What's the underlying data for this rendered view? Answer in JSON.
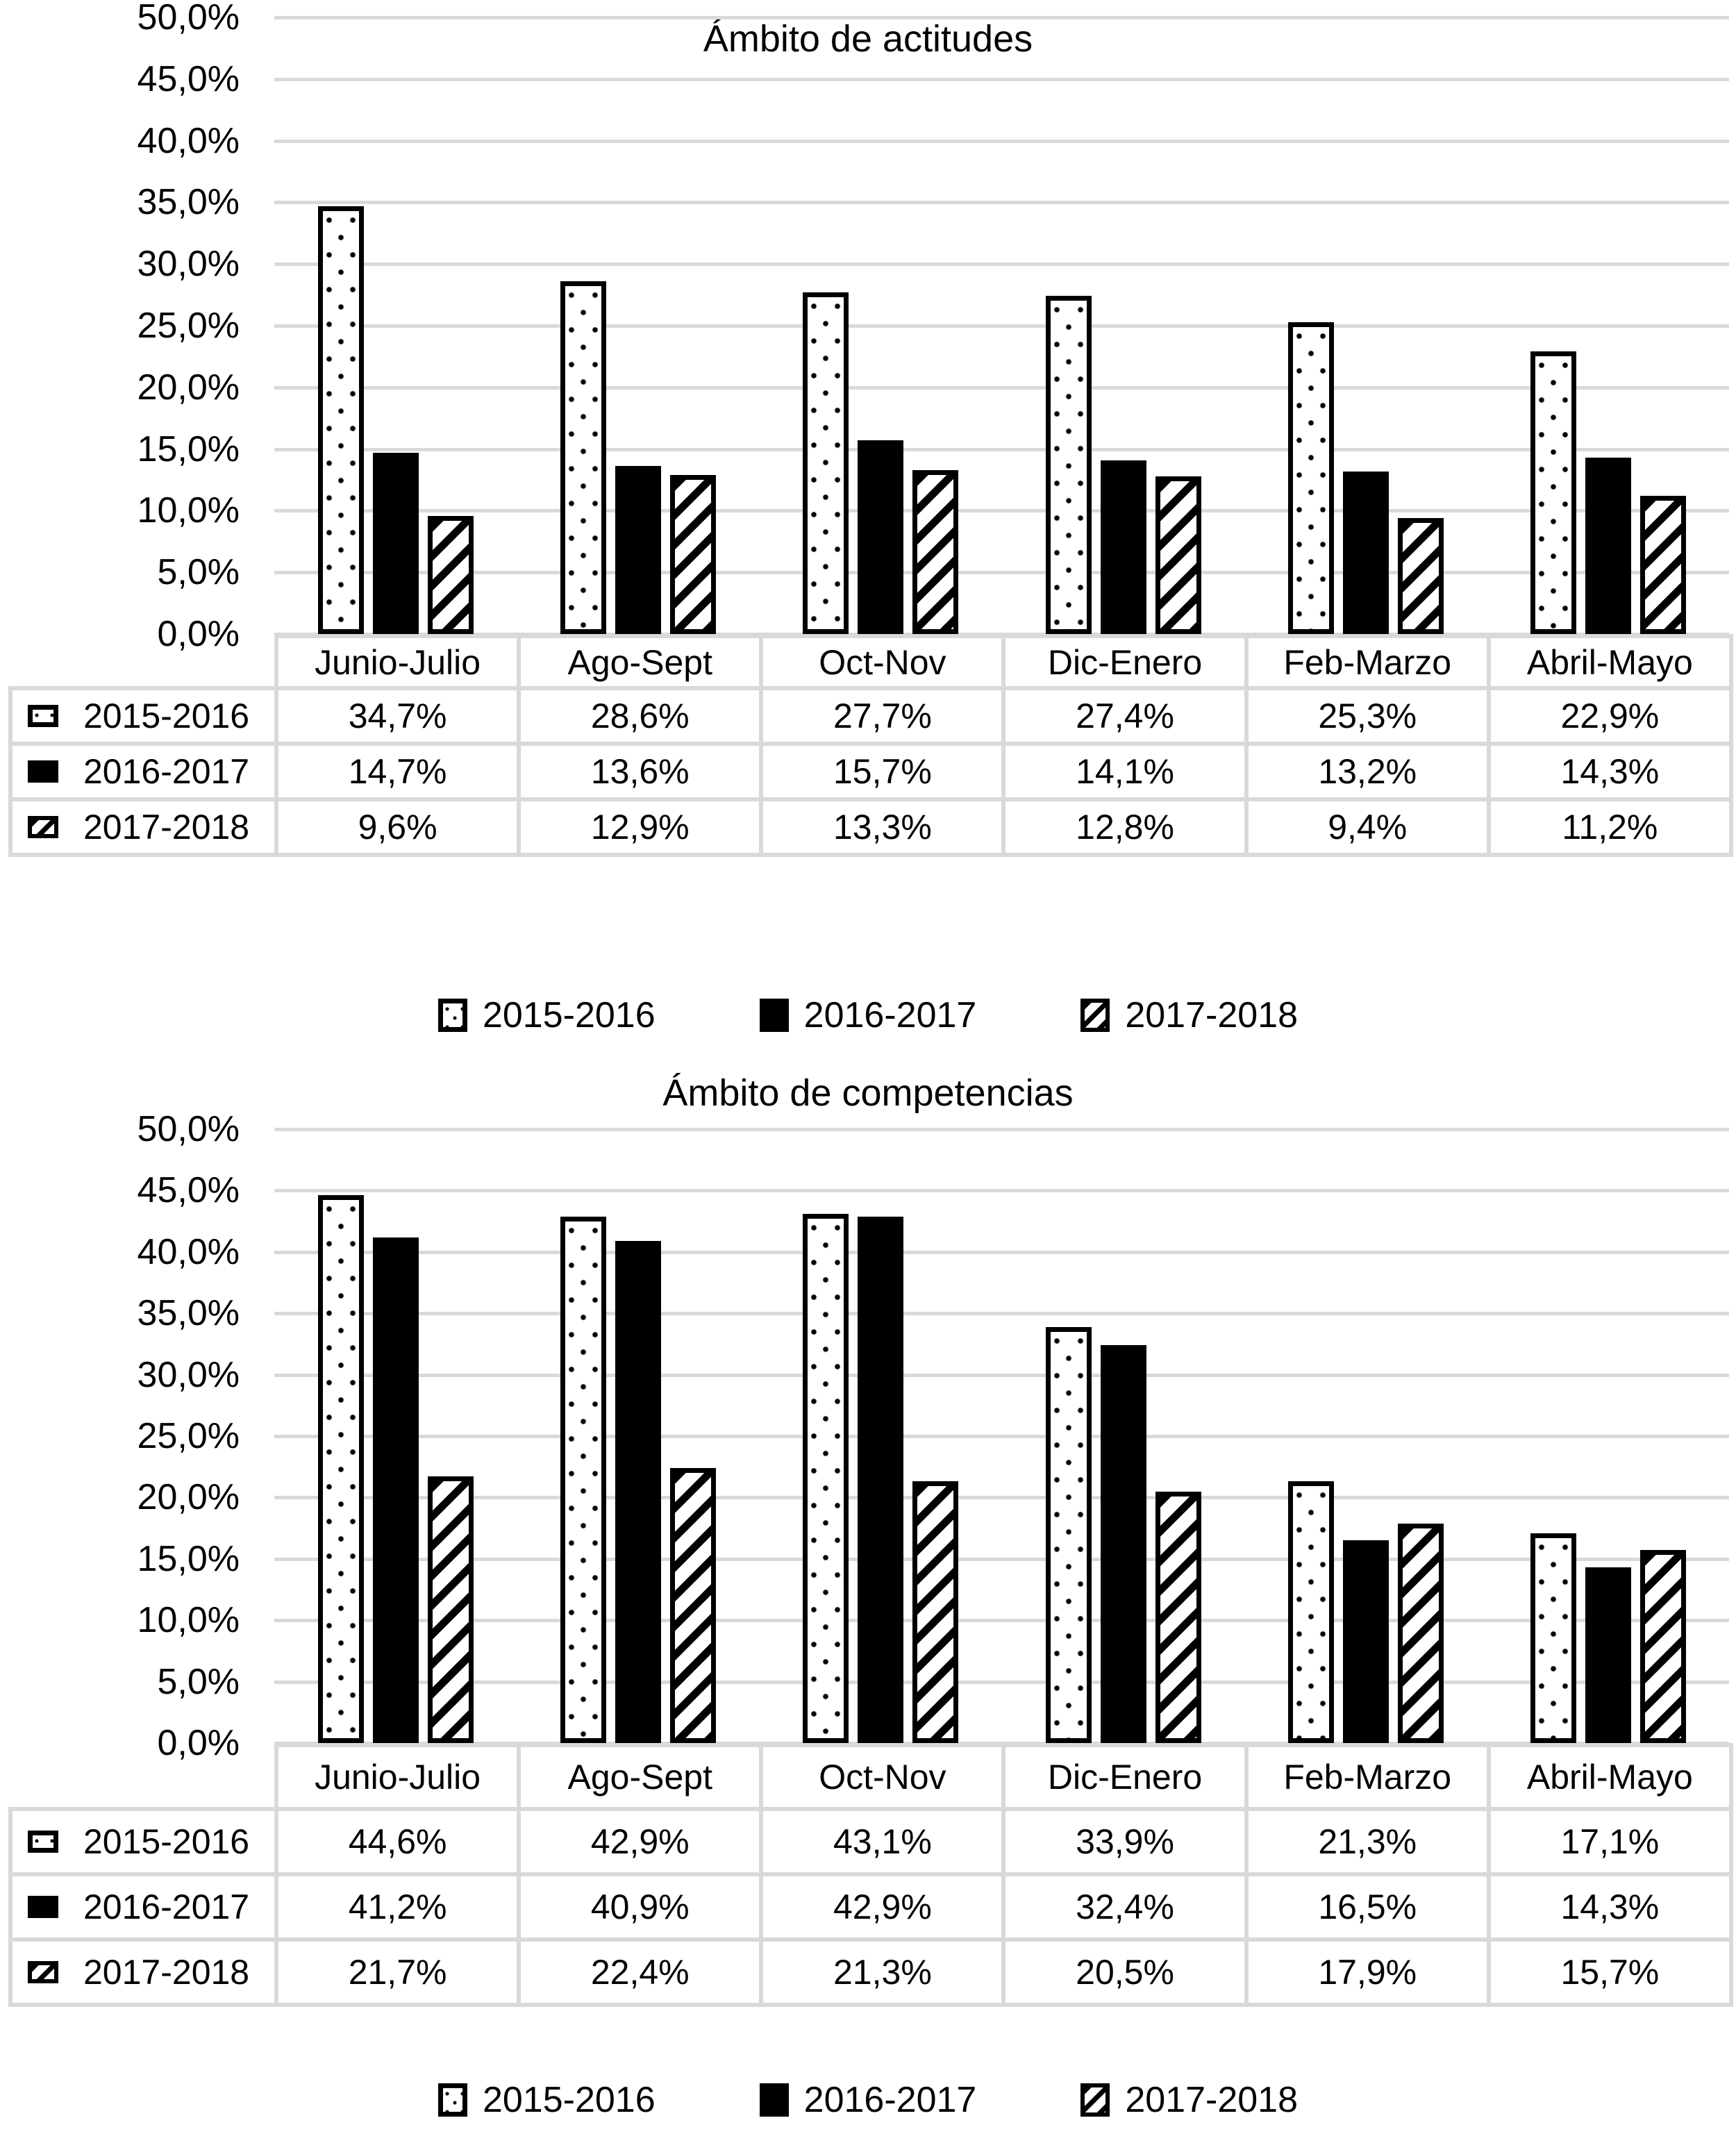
{
  "colors": {
    "bar_fill": "#000000",
    "grid_line": "#d9d9d9",
    "text": "#000000",
    "background": "#ffffff"
  },
  "chart_data": [
    {
      "type": "bar",
      "title": "Ámbito de actitudes",
      "categories": [
        "Junio-Julio",
        "Ago-Sept",
        "Oct-Nov",
        "Dic-Enero",
        "Feb-Marzo",
        "Abril-Mayo"
      ],
      "series": [
        {
          "name": "2015-2016",
          "pattern": "dotted",
          "values": [
            34.7,
            28.6,
            27.7,
            27.4,
            25.3,
            22.9
          ],
          "display": [
            "34,7%",
            "28,6%",
            "27,7%",
            "27,4%",
            "25,3%",
            "22,9%"
          ]
        },
        {
          "name": "2016-2017",
          "pattern": "solid",
          "values": [
            14.7,
            13.6,
            15.7,
            14.1,
            13.2,
            14.3
          ],
          "display": [
            "14,7%",
            "13,6%",
            "15,7%",
            "14,1%",
            "13,2%",
            "14,3%"
          ]
        },
        {
          "name": "2017-2018",
          "pattern": "hatched",
          "values": [
            9.6,
            12.9,
            13.3,
            12.8,
            9.4,
            11.2
          ],
          "display": [
            "9,6%",
            "12,9%",
            "13,3%",
            "12,8%",
            "9,4%",
            "11,2%"
          ]
        }
      ],
      "y_ticks": [
        "50,0%",
        "45,0%",
        "40,0%",
        "35,0%",
        "30,0%",
        "25,0%",
        "20,0%",
        "15,0%",
        "10,0%",
        "5,0%",
        "0,0%"
      ],
      "ylim": [
        0,
        50
      ],
      "grid": true,
      "legend_position": "bottom",
      "data_table": true
    },
    {
      "type": "bar",
      "title": "Ámbito de competencias",
      "categories": [
        "Junio-Julio",
        "Ago-Sept",
        "Oct-Nov",
        "Dic-Enero",
        "Feb-Marzo",
        "Abril-Mayo"
      ],
      "series": [
        {
          "name": "2015-2016",
          "pattern": "dotted",
          "values": [
            44.6,
            42.9,
            43.1,
            33.9,
            21.3,
            17.1
          ],
          "display": [
            "44,6%",
            "42,9%",
            "43,1%",
            "33,9%",
            "21,3%",
            "17,1%"
          ]
        },
        {
          "name": "2016-2017",
          "pattern": "solid",
          "values": [
            41.2,
            40.9,
            42.9,
            32.4,
            16.5,
            14.3
          ],
          "display": [
            "41,2%",
            "40,9%",
            "42,9%",
            "32,4%",
            "16,5%",
            "14,3%"
          ]
        },
        {
          "name": "2017-2018",
          "pattern": "hatched",
          "values": [
            21.7,
            22.4,
            21.3,
            20.5,
            17.9,
            15.7
          ],
          "display": [
            "21,7%",
            "22,4%",
            "21,3%",
            "20,5%",
            "17,9%",
            "15,7%"
          ]
        }
      ],
      "y_ticks": [
        "50,0%",
        "45,0%",
        "40,0%",
        "35,0%",
        "30,0%",
        "25,0%",
        "20,0%",
        "15,0%",
        "10,0%",
        "5,0%",
        "0,0%"
      ],
      "ylim": [
        0,
        50
      ],
      "grid": true,
      "legend_position": "bottom",
      "data_table": true
    }
  ]
}
